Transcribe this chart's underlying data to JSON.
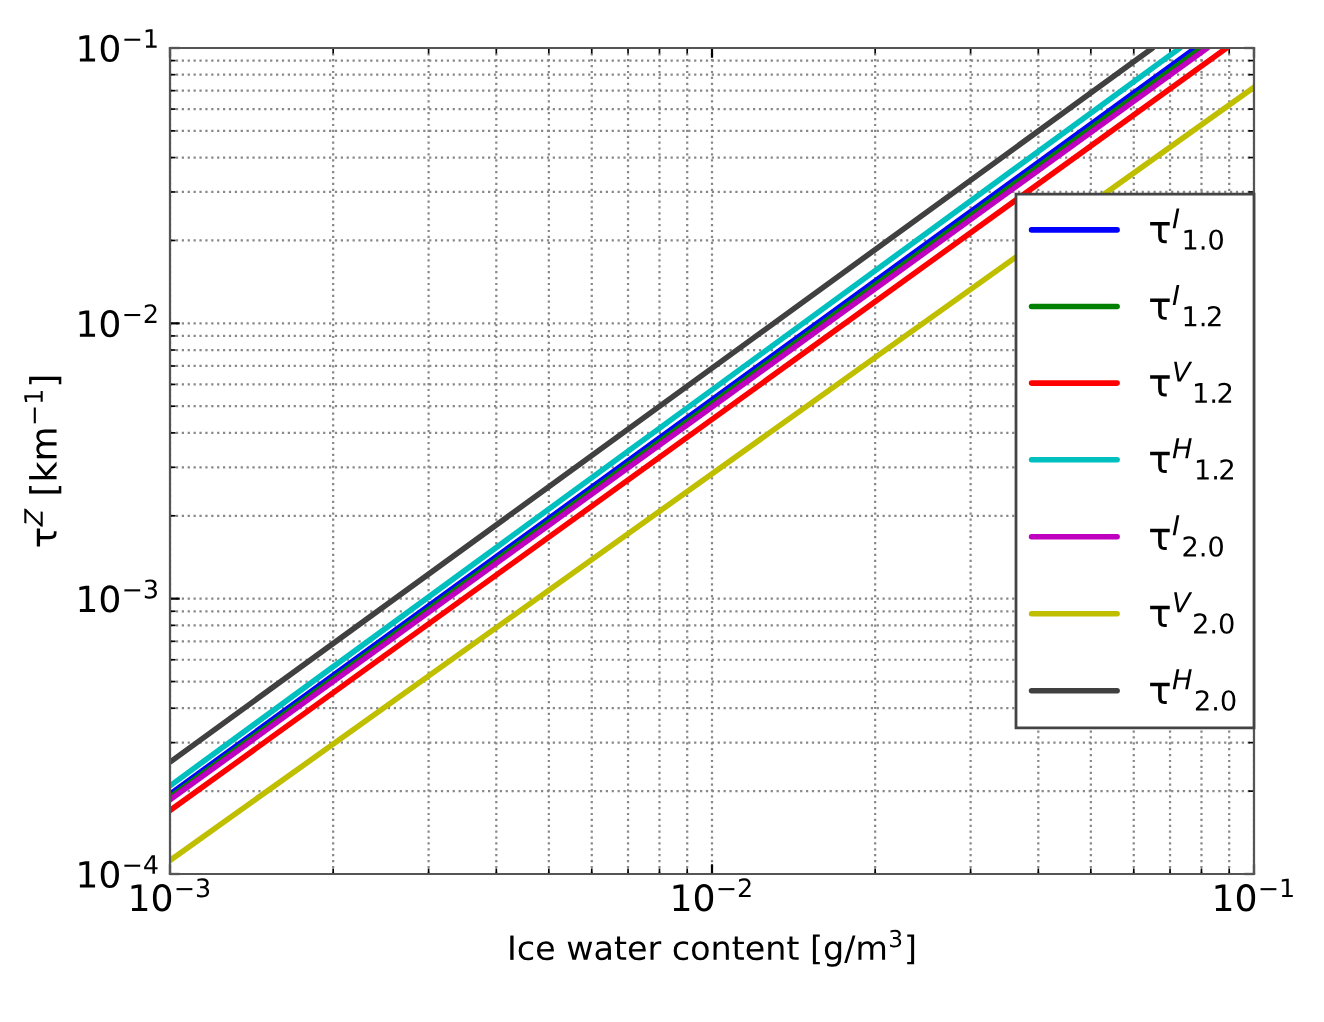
{
  "chart_data": {
    "type": "line",
    "xlabel": "Ice water content [g/m$^{3}$]",
    "ylabel": "τ$^{Z}$ [km$^{−1}$]",
    "log": "xy",
    "grid": true,
    "legend": "right",
    "line_style": "solid",
    "marker": "none",
    "xlim": [
      0.001,
      0.1
    ],
    "ylim": [
      0.0001,
      0.1
    ],
    "xticks": [
      {
        "value": 0.001,
        "label": "10$^{−3}$"
      },
      {
        "value": 0.01,
        "label": "10$^{−2}$"
      },
      {
        "value": 0.1,
        "label": "10$^{−1}$"
      }
    ],
    "yticks": [
      {
        "value": 0.0001,
        "label": "10$^{−4}$"
      },
      {
        "value": 0.001,
        "label": "10$^{−3}$"
      },
      {
        "value": 0.01,
        "label": "10$^{−2}$"
      },
      {
        "value": 0.1,
        "label": "10$^{−1}$"
      }
    ],
    "series": [
      {
        "name": "τ$^{I}$$_{1.0}$",
        "color": "#0000ff",
        "x": [
          0.001,
          0.078
        ],
        "values": [
          0.000195,
          0.1
        ]
      },
      {
        "name": "τ$^{I}$$_{1.2}$",
        "color": "#008000",
        "x": [
          0.001,
          0.08
        ],
        "values": [
          0.00019,
          0.1
        ]
      },
      {
        "name": "τ$^{V}$$_{1.2}$",
        "color": "#ff0000",
        "x": [
          0.001,
          0.089
        ],
        "values": [
          0.00017,
          0.1
        ]
      },
      {
        "name": "τ$^{H}$$_{1.2}$",
        "color": "#00bfbf",
        "x": [
          0.001,
          0.073
        ],
        "values": [
          0.000209,
          0.1
        ]
      },
      {
        "name": "τ$^{I}$$_{2.0}$",
        "color": "#bf00bf",
        "x": [
          0.001,
          0.082
        ],
        "values": [
          0.000186,
          0.1
        ]
      },
      {
        "name": "τ$^{V}$$_{2.0}$",
        "color": "#bfbf00",
        "x": [
          0.001,
          0.1
        ],
        "values": [
          0.000112,
          0.072
        ]
      },
      {
        "name": "τ$^{H}$$_{2.0}$",
        "color": "#404040",
        "x": [
          0.001,
          0.065
        ],
        "values": [
          0.000255,
          0.1
        ]
      }
    ]
  }
}
